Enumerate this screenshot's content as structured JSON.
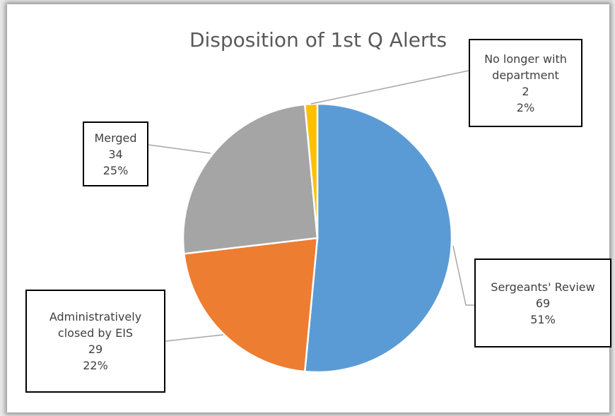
{
  "chart_data": {
    "type": "pie",
    "title": "Disposition of 1st Q Alerts",
    "categories": [
      "Sergeants' Review",
      "Administratively closed by EIS",
      "Merged",
      "No longer with department"
    ],
    "values": [
      69,
      29,
      34,
      2
    ],
    "percent_labels": [
      "51%",
      "22%",
      "25%",
      "2%"
    ],
    "colors": [
      "#5b9bd5",
      "#ed7d31",
      "#a5a5a5",
      "#ffc000"
    ]
  }
}
